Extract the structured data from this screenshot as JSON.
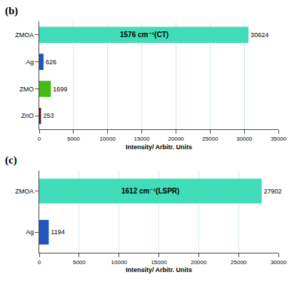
{
  "chart_data": [
    {
      "type": "bar",
      "orientation": "horizontal",
      "title": "1576 cm⁻¹(CT)",
      "annotations": [
        "(b)"
      ],
      "categories": [
        "ZMOA",
        "Ag",
        "ZMO",
        "ZnO"
      ],
      "values": [
        30624,
        626,
        1699,
        253
      ],
      "colors": [
        "#40DDB8",
        "#2255BB",
        "#44BB11",
        "#6B1010"
      ],
      "xlim": [
        0,
        35000
      ],
      "xticks": [
        0,
        5000,
        10000,
        15000,
        20000,
        25000,
        30000,
        35000
      ],
      "xlabel": "Intensity/ Arbitr. Units",
      "grid": true,
      "data_labels": true
    },
    {
      "type": "bar",
      "orientation": "horizontal",
      "title": "1612 cm⁻¹(LSPR)",
      "annotations": [
        "(c)"
      ],
      "categories": [
        "ZMOA",
        "Ag"
      ],
      "values": [
        27902,
        1194
      ],
      "colors": [
        "#40DDB8",
        "#2255BB"
      ],
      "xlim": [
        0,
        30000
      ],
      "xticks": [
        0,
        5000,
        10000,
        15000,
        20000,
        25000,
        30000
      ],
      "xlabel": "Intensity/ Arbitr. Units",
      "grid": true,
      "data_labels": true
    }
  ]
}
